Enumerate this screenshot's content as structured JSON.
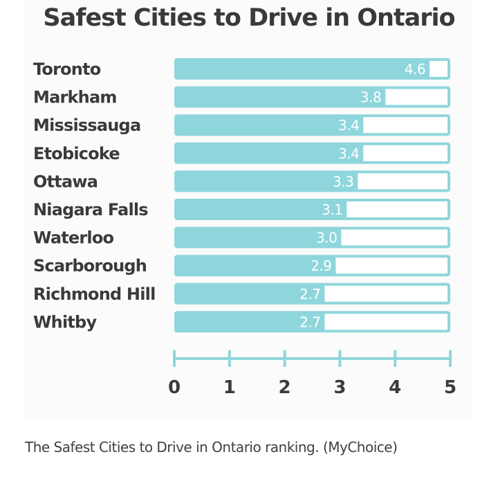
{
  "chart_data": {
    "type": "bar",
    "orientation": "horizontal",
    "title": "Safest Cities to Drive in Ontario",
    "categories": [
      "Toronto",
      "Markham",
      "Mississauga",
      "Etobicoke",
      "Ottawa",
      "Niagara Falls",
      "Waterloo",
      "Scarborough",
      "Richmond Hill",
      "Whitby"
    ],
    "values": [
      4.6,
      3.8,
      3.4,
      3.4,
      3.3,
      3.1,
      3.0,
      2.9,
      2.7,
      2.7
    ],
    "value_labels": [
      "4.6",
      "3.8",
      "3.4",
      "3.4",
      "3.3",
      "3.1",
      "3.0",
      "2.9",
      "2.7",
      "2.7"
    ],
    "xlim": [
      0,
      5
    ],
    "xticks": [
      "0",
      "1",
      "2",
      "3",
      "4",
      "5"
    ],
    "xlabel": "",
    "ylabel": "",
    "grid": false,
    "legend": "none",
    "colors": {
      "bar": "#8fd6dc",
      "track": "#ffffff",
      "axis": "#8fd6dc",
      "text": "#3a3a3a"
    }
  },
  "caption": "The Safest Cities to Drive in Ontario ranking. (MyChoice)"
}
